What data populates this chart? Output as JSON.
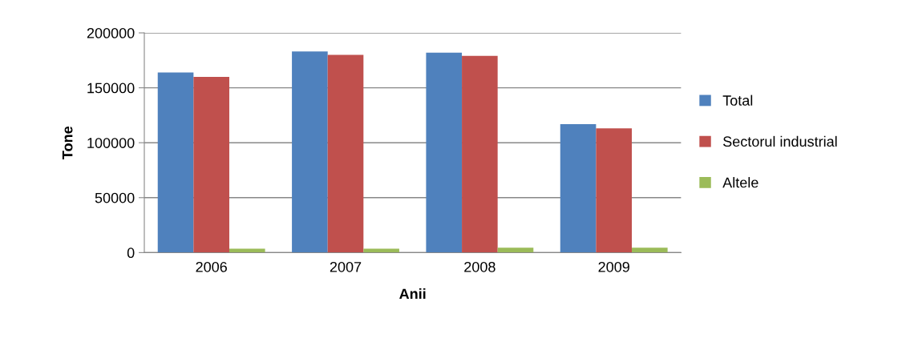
{
  "chart_data": {
    "type": "bar",
    "xlabel": "Anii",
    "ylabel": "Tone",
    "categories": [
      "2006",
      "2007",
      "2008",
      "2009"
    ],
    "series": [
      {
        "name": "Total",
        "color": "#4f81bd",
        "values": [
          164000,
          183000,
          182000,
          117000
        ]
      },
      {
        "name": "Sectorul industrial",
        "color": "#c0504d",
        "values": [
          160000,
          180000,
          179000,
          113000
        ]
      },
      {
        "name": "Altele",
        "color": "#9bbb59",
        "values": [
          3500,
          3500,
          4500,
          4500
        ]
      }
    ],
    "ylim": [
      0,
      200000
    ],
    "yticks": [
      0,
      50000,
      100000,
      150000,
      200000
    ],
    "grid": "y",
    "legend": "right"
  }
}
